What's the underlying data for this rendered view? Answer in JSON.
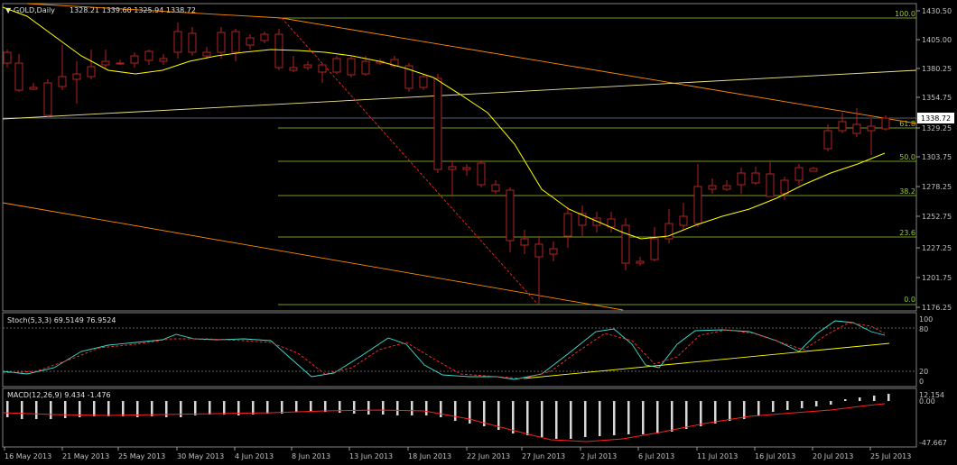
{
  "header": {
    "symbol": "GOLD,Daily",
    "ohlc": "1328.21 1339.60 1325.94 1338.72",
    "stoch_label": "Stoch(5,3,3) 69.5149 76.9524",
    "macd_label": "MACD(12,26,9) 9.434 -1.476"
  },
  "price_axis": {
    "ticks": [
      "1430.50",
      "1405.00",
      "1380.25",
      "1354.75",
      "1329.25",
      "1303.75",
      "1278.25",
      "1252.75",
      "1227.25",
      "1201.75",
      "1176.25"
    ],
    "current": "1338.72"
  },
  "stoch_axis": {
    "ticks": [
      "100",
      "80",
      "20",
      "0"
    ]
  },
  "macd_axis": {
    "ticks": [
      "12.154",
      "0.00",
      "-47.667"
    ]
  },
  "date_axis": {
    "labels": [
      "16 May 2013",
      "21 May 2013",
      "25 May 2013",
      "30 May 2013",
      "4 Jun 2013",
      "8 Jun 2013",
      "13 Jun 2013",
      "18 Jun 2013",
      "22 Jun 2013",
      "27 Jun 2013",
      "2 Jul 2013",
      "6 Jul 2013",
      "11 Jul 2013",
      "16 Jul 2013",
      "20 Jul 2013",
      "25 Jul 2013"
    ]
  },
  "fibonacci": {
    "levels": [
      "100.0",
      "61.8",
      "50.0",
      "38.2",
      "23.6",
      "0.0"
    ]
  },
  "colors": {
    "background": "#000000",
    "bull": "#40e0d0",
    "bear": "#b22222",
    "ma": "#ffff00",
    "fib": "#9acd32",
    "trend_orange": "#ff8c00",
    "trend_yellow": "#f0e68c",
    "stoch_main": "#40e0d0",
    "stoch_signal": "#ff3030",
    "macd_hist": "#d8d8d8",
    "macd_signal": "#ff2020"
  }
}
